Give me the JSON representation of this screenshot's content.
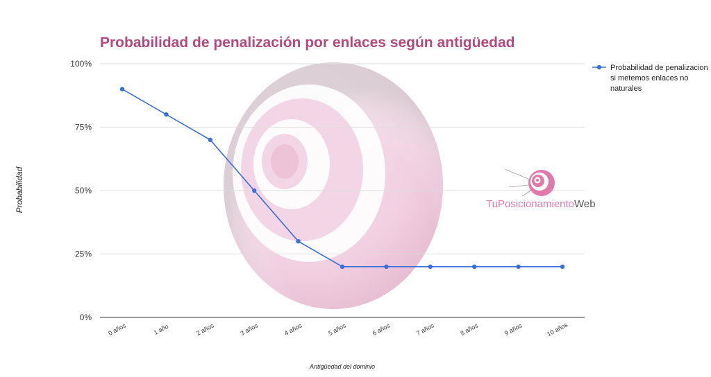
{
  "chart_data": {
    "type": "line",
    "title": "Probabilidad de penalización por enlaces según antigüedad",
    "xlabel": "Antigüedad del dominio",
    "ylabel": "Probabilidad",
    "categories": [
      "0 años",
      "1 año",
      "2 años",
      "3 años",
      "4 años",
      "5 años",
      "6 años",
      "7 años",
      "8 años",
      "9 años",
      "10 años"
    ],
    "series": [
      {
        "name": "Probabilidad de penalizacion si metemos enlaces no naturales",
        "legend_lines": [
          "Probabilidad de penalizacion",
          "si metemos enlaces no",
          "naturales"
        ],
        "values": [
          90,
          80,
          70,
          50,
          30,
          20,
          20,
          20,
          20,
          20,
          20
        ],
        "color": "#3a6fd8"
      }
    ],
    "yticks": [
      "0%",
      "25%",
      "50%",
      "75%",
      "100%"
    ],
    "ytick_values": [
      0,
      25,
      50,
      75,
      100
    ],
    "ylim": [
      0,
      100
    ],
    "grid": true,
    "legend_position": "right"
  },
  "watermark": {
    "brand_part1": "TuPosicionamiento",
    "brand_part2": "Web",
    "color_pink": "#e07aaa",
    "color_dark": "#555555"
  },
  "colors": {
    "title": "#b2497f",
    "grid": "#dcdcdc",
    "axis": "#333333"
  }
}
